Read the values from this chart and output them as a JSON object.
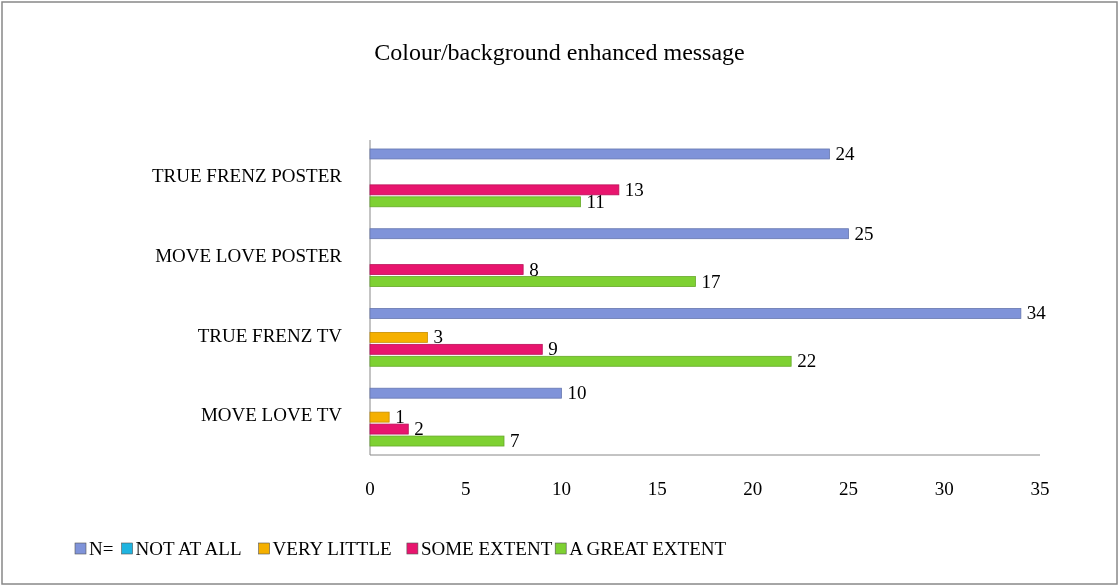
{
  "chart_data": {
    "type": "bar",
    "orientation": "horizontal",
    "title": "Colour/background enhanced message",
    "categories": [
      "TRUE FRENZ POSTER",
      "MOVE LOVE POSTER",
      "TRUE FRENZ TV",
      "MOVE LOVE TV"
    ],
    "series": [
      {
        "name": "N=",
        "color": "#7f93d9",
        "values": [
          24,
          25,
          34,
          10
        ]
      },
      {
        "name": "NOT AT ALL",
        "color": "#1fb4e0",
        "values": [
          null,
          null,
          null,
          null
        ]
      },
      {
        "name": "VERY LITTLE",
        "color": "#f5b000",
        "values": [
          null,
          null,
          3,
          1
        ]
      },
      {
        "name": "SOME EXTENT",
        "color": "#e8156e",
        "values": [
          13,
          8,
          9,
          2
        ]
      },
      {
        "name": "A GREAT EXTENT",
        "color": "#7ed132",
        "values": [
          11,
          17,
          22,
          7
        ]
      }
    ],
    "xlim": [
      0,
      35
    ],
    "xticks": [
      0,
      5,
      10,
      15,
      20,
      25,
      30,
      35
    ],
    "data_labels": true,
    "grid": false,
    "legend": "bottom"
  }
}
